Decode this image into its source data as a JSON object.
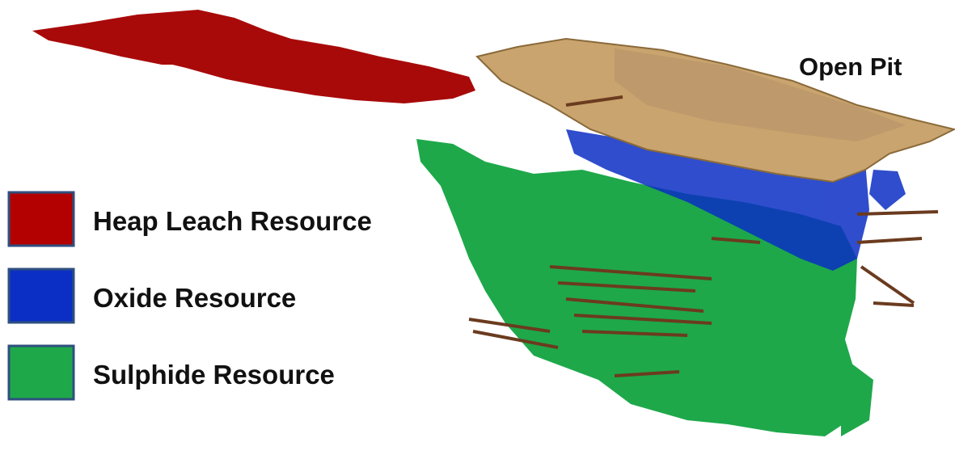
{
  "legend": {
    "items": [
      {
        "label": "Heap Leach Resource",
        "color": "#b30000"
      },
      {
        "label": "Oxide Resource",
        "color": "#0b2fc4"
      },
      {
        "label": "Sulphide Resource",
        "color": "#1ea84a"
      }
    ]
  },
  "annotations": {
    "open_pit": "Open Pit"
  }
}
